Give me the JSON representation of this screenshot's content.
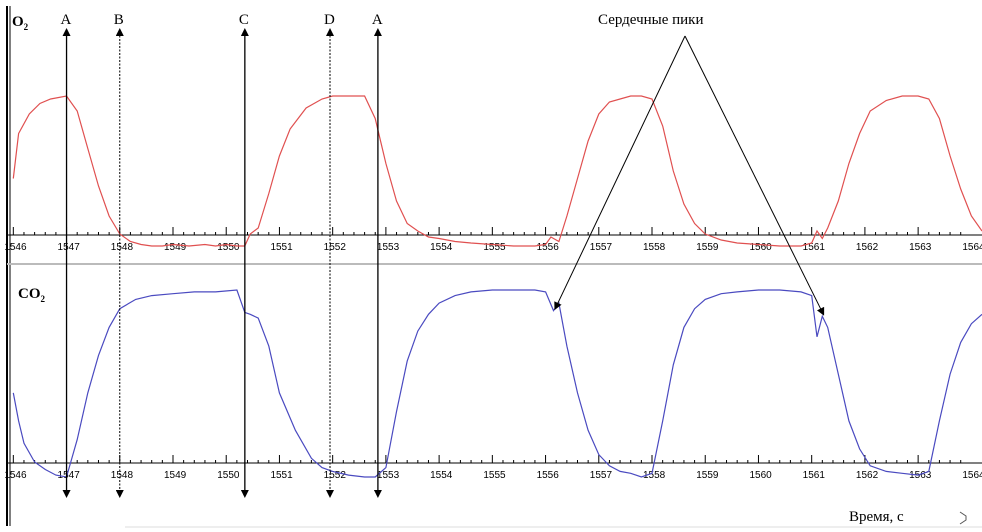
{
  "chart_data": {
    "type": "line",
    "xlabel": "Время, с",
    "xlim": [
      1545.9,
      1564.2
    ],
    "x_ticks": [
      1546,
      1547,
      1548,
      1549,
      1550,
      1551,
      1552,
      1553,
      1554,
      1555,
      1556,
      1557,
      1558,
      1559,
      1560,
      1561,
      1562,
      1563,
      1564
    ],
    "annotation": "Сердечные пики",
    "panels": [
      {
        "name": "O2",
        "label_main": "O",
        "label_sub": "2",
        "color": "#e05050",
        "series": {
          "x": [
            1546.0,
            1546.1,
            1546.3,
            1546.5,
            1546.7,
            1547.0,
            1547.2,
            1547.4,
            1547.6,
            1547.8,
            1548.0,
            1548.2,
            1548.4,
            1548.6,
            1548.8,
            1549.0,
            1549.3,
            1549.6,
            1549.8,
            1550.0,
            1550.2,
            1550.35,
            1550.45,
            1550.6,
            1550.8,
            1551.0,
            1551.2,
            1551.5,
            1551.8,
            1552.0,
            1552.3,
            1552.6,
            1552.8,
            1553.0,
            1553.2,
            1553.4,
            1553.6,
            1553.8,
            1554.0,
            1554.3,
            1554.6,
            1555.0,
            1555.4,
            1555.8,
            1556.0,
            1556.1,
            1556.25,
            1556.4,
            1556.6,
            1556.8,
            1557.0,
            1557.2,
            1557.4,
            1557.6,
            1557.8,
            1558.0,
            1558.2,
            1558.4,
            1558.6,
            1558.8,
            1559.0,
            1559.3,
            1559.6,
            1560.0,
            1560.4,
            1560.8,
            1561.0,
            1561.1,
            1561.2,
            1561.3,
            1561.5,
            1561.7,
            1561.9,
            1562.1,
            1562.4,
            1562.7,
            1563.0,
            1563.2,
            1563.4,
            1563.6,
            1563.8,
            1564.0,
            1564.2
          ],
          "y": [
            0.45,
            0.75,
            0.88,
            0.95,
            0.98,
            1.0,
            0.9,
            0.65,
            0.4,
            0.2,
            0.08,
            0.03,
            0.01,
            0.0,
            0.0,
            0.01,
            0.0,
            0.01,
            0.0,
            0.01,
            0.0,
            0.0,
            0.08,
            0.12,
            0.35,
            0.6,
            0.78,
            0.92,
            0.98,
            1.0,
            1.0,
            1.0,
            0.85,
            0.55,
            0.3,
            0.15,
            0.1,
            0.06,
            0.05,
            0.03,
            0.02,
            0.01,
            0.0,
            0.0,
            0.01,
            0.06,
            0.03,
            0.2,
            0.45,
            0.7,
            0.88,
            0.96,
            0.98,
            1.0,
            1.0,
            0.98,
            0.8,
            0.5,
            0.28,
            0.15,
            0.08,
            0.04,
            0.02,
            0.01,
            0.0,
            0.0,
            0.02,
            0.1,
            0.05,
            0.12,
            0.3,
            0.55,
            0.75,
            0.9,
            0.97,
            1.0,
            1.0,
            0.98,
            0.85,
            0.6,
            0.38,
            0.2,
            0.1
          ]
        }
      },
      {
        "name": "CO2",
        "label_main": "CO",
        "label_sub": "2",
        "color": "#4a4ac0",
        "series": {
          "x": [
            1546.0,
            1546.1,
            1546.2,
            1546.4,
            1546.6,
            1546.8,
            1547.0,
            1547.2,
            1547.4,
            1547.6,
            1547.8,
            1548.0,
            1548.3,
            1548.6,
            1549.0,
            1549.4,
            1549.8,
            1550.2,
            1550.35,
            1550.45,
            1550.6,
            1550.8,
            1551.0,
            1551.3,
            1551.6,
            1551.8,
            1552.0,
            1552.3,
            1552.6,
            1552.8,
            1553.0,
            1553.2,
            1553.4,
            1553.6,
            1553.8,
            1554.0,
            1554.3,
            1554.6,
            1555.0,
            1555.4,
            1555.8,
            1556.0,
            1556.15,
            1556.25,
            1556.4,
            1556.6,
            1556.8,
            1557.0,
            1557.2,
            1557.4,
            1557.6,
            1557.8,
            1558.0,
            1558.2,
            1558.4,
            1558.6,
            1558.8,
            1559.0,
            1559.3,
            1559.6,
            1560.0,
            1560.4,
            1560.8,
            1561.0,
            1561.1,
            1561.2,
            1561.3,
            1561.5,
            1561.7,
            1561.9,
            1562.1,
            1562.4,
            1562.7,
            1563.0,
            1563.2,
            1563.4,
            1563.6,
            1563.8,
            1564.0,
            1564.2
          ],
          "y": [
            0.45,
            0.3,
            0.18,
            0.08,
            0.04,
            0.01,
            0.0,
            0.2,
            0.45,
            0.65,
            0.8,
            0.9,
            0.95,
            0.97,
            0.98,
            0.99,
            0.99,
            1.0,
            0.88,
            0.87,
            0.85,
            0.7,
            0.45,
            0.25,
            0.1,
            0.05,
            0.03,
            0.01,
            0.0,
            0.0,
            0.05,
            0.35,
            0.62,
            0.78,
            0.87,
            0.93,
            0.97,
            0.99,
            1.0,
            1.0,
            1.0,
            0.99,
            0.89,
            0.93,
            0.7,
            0.45,
            0.25,
            0.12,
            0.06,
            0.03,
            0.02,
            0.0,
            0.02,
            0.3,
            0.6,
            0.8,
            0.9,
            0.95,
            0.98,
            0.99,
            1.0,
            1.0,
            0.99,
            0.97,
            0.75,
            0.86,
            0.8,
            0.55,
            0.3,
            0.15,
            0.06,
            0.03,
            0.02,
            0.01,
            0.03,
            0.3,
            0.55,
            0.72,
            0.82,
            0.87
          ]
        }
      }
    ],
    "markers": [
      {
        "label": "A",
        "x": 1547.0,
        "style": "solid",
        "arrow": "both"
      },
      {
        "label": "B",
        "x": 1548.0,
        "style": "dotted",
        "arrow": "both"
      },
      {
        "label": "C",
        "x": 1550.35,
        "style": "solid",
        "arrow": "both"
      },
      {
        "label": "D",
        "x": 1551.95,
        "style": "dotted",
        "arrow": "both"
      },
      {
        "label": "A",
        "x": 1552.85,
        "style": "solid",
        "arrow": "both"
      }
    ],
    "cardiac_peaks": [
      {
        "panel": "CO2",
        "x": 1556.2
      },
      {
        "panel": "CO2",
        "x": 1561.2
      }
    ]
  }
}
